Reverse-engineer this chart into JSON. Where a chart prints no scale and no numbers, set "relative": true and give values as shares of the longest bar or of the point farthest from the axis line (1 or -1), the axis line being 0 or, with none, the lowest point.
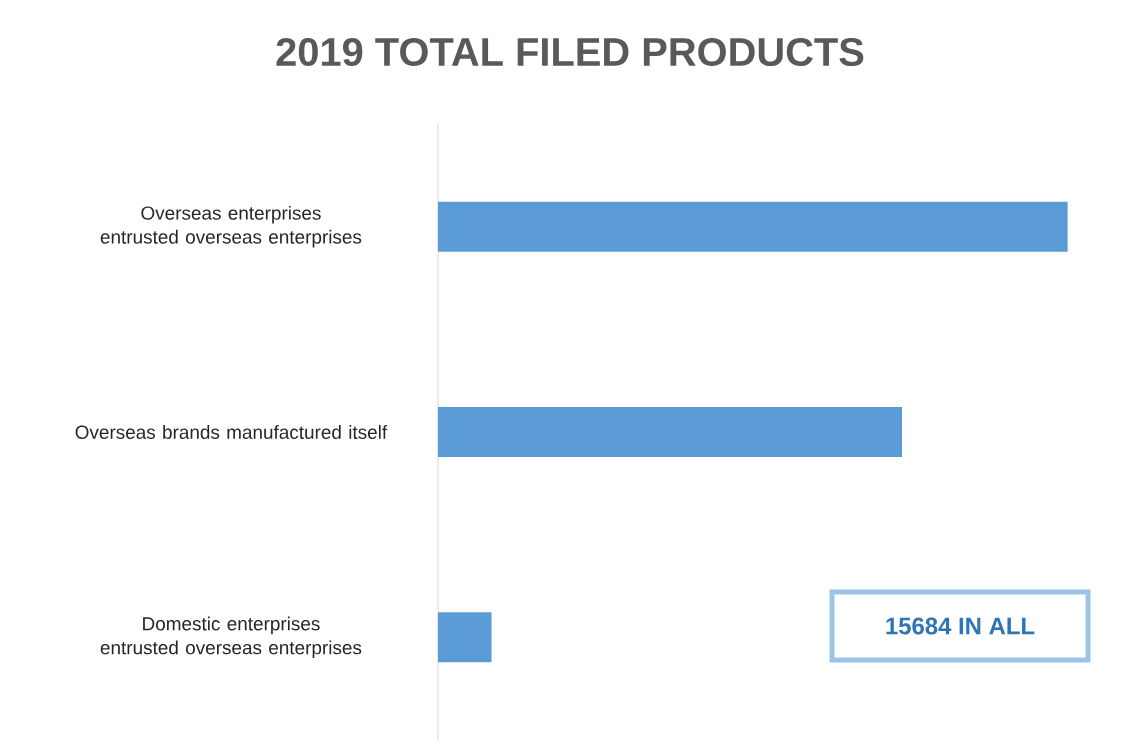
{
  "chart_data": {
    "type": "bar",
    "orientation": "horizontal",
    "relative": true,
    "title": "2019 TOTAL FILED PRODUCTS",
    "categories": [
      "Overseas enterprises entrusted overseas enterprises",
      "Overseas brands manufactured itself",
      "Domestic enterprises entrusted overseas enterprises"
    ],
    "values": [
      1,
      0.737,
      0.085
    ],
    "color": "#5b9bd5",
    "annotations": [
      "15684 IN ALL"
    ]
  }
}
